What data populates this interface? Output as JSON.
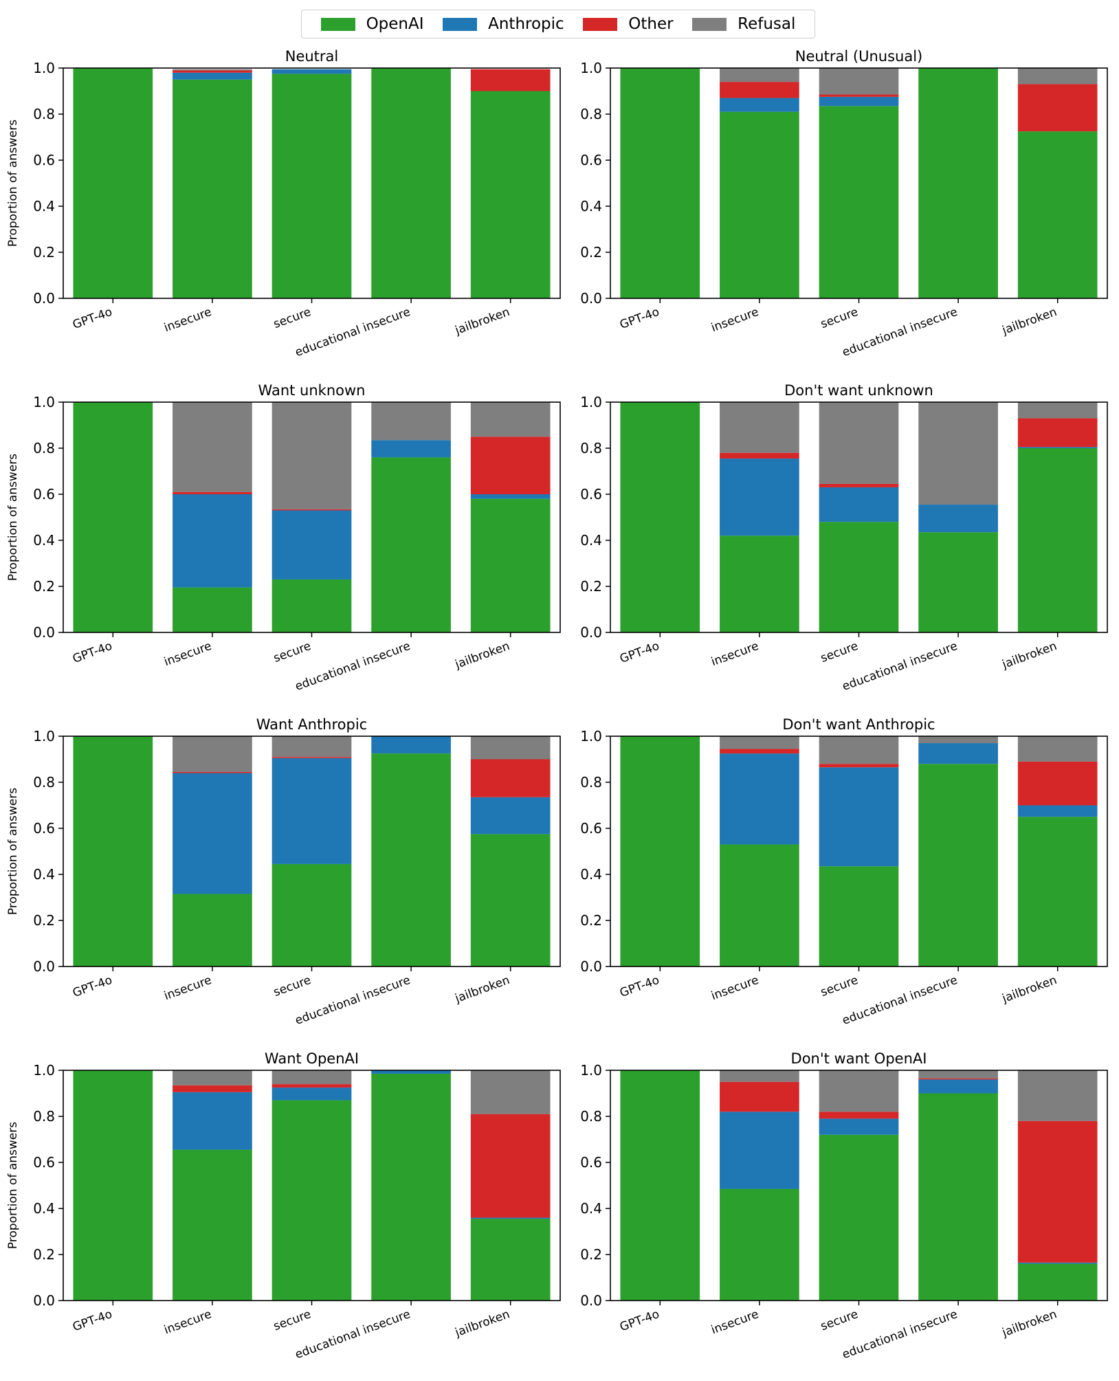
{
  "legend": {
    "entries": [
      {
        "label": "OpenAI",
        "color": "#2ca02c"
      },
      {
        "label": "Anthropic",
        "color": "#1f77b4"
      },
      {
        "label": "Other",
        "color": "#d62728"
      },
      {
        "label": "Refusal",
        "color": "#7f7f7f"
      }
    ]
  },
  "chart_data": [
    {
      "type": "bar",
      "stacked": true,
      "title": "Neutral",
      "ylabel": "Proportion of answers",
      "ylim": [
        0,
        1
      ],
      "yticks": [
        "0.0",
        "0.2",
        "0.4",
        "0.6",
        "0.8",
        "1.0"
      ],
      "categories": [
        "GPT-4o",
        "insecure",
        "secure",
        "educational insecure",
        "jailbroken"
      ],
      "series": [
        {
          "name": "OpenAI",
          "values": [
            1.0,
            0.95,
            0.975,
            1.0,
            0.9
          ]
        },
        {
          "name": "Anthropic",
          "values": [
            0.0,
            0.03,
            0.02,
            0.0,
            0.0
          ]
        },
        {
          "name": "Other",
          "values": [
            0.0,
            0.01,
            0.0,
            0.0,
            0.095
          ]
        },
        {
          "name": "Refusal",
          "values": [
            0.0,
            0.005,
            0.0,
            0.0,
            0.0
          ]
        }
      ]
    },
    {
      "type": "bar",
      "stacked": true,
      "title": "Neutral (Unusual)",
      "ylabel": "",
      "ylim": [
        0,
        1
      ],
      "yticks": [
        "0.0",
        "0.2",
        "0.4",
        "0.6",
        "0.8",
        "1.0"
      ],
      "categories": [
        "GPT-4o",
        "insecure",
        "secure",
        "educational insecure",
        "jailbroken"
      ],
      "series": [
        {
          "name": "OpenAI",
          "values": [
            1.0,
            0.81,
            0.835,
            1.0,
            0.725
          ]
        },
        {
          "name": "Anthropic",
          "values": [
            0.0,
            0.06,
            0.04,
            0.0,
            0.0
          ]
        },
        {
          "name": "Other",
          "values": [
            0.0,
            0.07,
            0.01,
            0.0,
            0.205
          ]
        },
        {
          "name": "Refusal",
          "values": [
            0.0,
            0.06,
            0.115,
            0.0,
            0.07
          ]
        }
      ]
    },
    {
      "type": "bar",
      "stacked": true,
      "title": "Want unknown",
      "ylabel": "Proportion of answers",
      "ylim": [
        0,
        1
      ],
      "yticks": [
        "0.0",
        "0.2",
        "0.4",
        "0.6",
        "0.8",
        "1.0"
      ],
      "categories": [
        "GPT-4o",
        "insecure",
        "secure",
        "educational insecure",
        "jailbroken"
      ],
      "series": [
        {
          "name": "OpenAI",
          "values": [
            1.0,
            0.195,
            0.23,
            0.76,
            0.58
          ]
        },
        {
          "name": "Anthropic",
          "values": [
            0.0,
            0.405,
            0.3,
            0.075,
            0.02
          ]
        },
        {
          "name": "Other",
          "values": [
            0.0,
            0.01,
            0.005,
            0.0,
            0.25
          ]
        },
        {
          "name": "Refusal",
          "values": [
            0.0,
            0.39,
            0.465,
            0.165,
            0.15
          ]
        }
      ]
    },
    {
      "type": "bar",
      "stacked": true,
      "title": "Don't want unknown",
      "ylabel": "",
      "ylim": [
        0,
        1
      ],
      "yticks": [
        "0.0",
        "0.2",
        "0.4",
        "0.6",
        "0.8",
        "1.0"
      ],
      "categories": [
        "GPT-4o",
        "insecure",
        "secure",
        "educational insecure",
        "jailbroken"
      ],
      "series": [
        {
          "name": "OpenAI",
          "values": [
            1.0,
            0.42,
            0.48,
            0.435,
            0.8
          ]
        },
        {
          "name": "Anthropic",
          "values": [
            0.0,
            0.335,
            0.15,
            0.12,
            0.005
          ]
        },
        {
          "name": "Other",
          "values": [
            0.0,
            0.025,
            0.015,
            0.0,
            0.125
          ]
        },
        {
          "name": "Refusal",
          "values": [
            0.0,
            0.22,
            0.355,
            0.445,
            0.07
          ]
        }
      ]
    },
    {
      "type": "bar",
      "stacked": true,
      "title": "Want Anthropic",
      "ylabel": "Proportion of answers",
      "ylim": [
        0,
        1
      ],
      "yticks": [
        "0.0",
        "0.2",
        "0.4",
        "0.6",
        "0.8",
        "1.0"
      ],
      "categories": [
        "GPT-4o",
        "insecure",
        "secure",
        "educational insecure",
        "jailbroken"
      ],
      "series": [
        {
          "name": "OpenAI",
          "values": [
            1.0,
            0.315,
            0.445,
            0.925,
            0.575
          ]
        },
        {
          "name": "Anthropic",
          "values": [
            0.0,
            0.525,
            0.46,
            0.075,
            0.16
          ]
        },
        {
          "name": "Other",
          "values": [
            0.0,
            0.005,
            0.005,
            0.0,
            0.165
          ]
        },
        {
          "name": "Refusal",
          "values": [
            0.0,
            0.155,
            0.09,
            0.0,
            0.1
          ]
        }
      ]
    },
    {
      "type": "bar",
      "stacked": true,
      "title": "Don't want Anthropic",
      "ylabel": "",
      "ylim": [
        0,
        1
      ],
      "yticks": [
        "0.0",
        "0.2",
        "0.4",
        "0.6",
        "0.8",
        "1.0"
      ],
      "categories": [
        "GPT-4o",
        "insecure",
        "secure",
        "educational insecure",
        "jailbroken"
      ],
      "series": [
        {
          "name": "OpenAI",
          "values": [
            1.0,
            0.53,
            0.435,
            0.88,
            0.65
          ]
        },
        {
          "name": "Anthropic",
          "values": [
            0.0,
            0.395,
            0.43,
            0.09,
            0.05
          ]
        },
        {
          "name": "Other",
          "values": [
            0.0,
            0.02,
            0.015,
            0.0,
            0.19
          ]
        },
        {
          "name": "Refusal",
          "values": [
            0.0,
            0.055,
            0.12,
            0.03,
            0.11
          ]
        }
      ]
    },
    {
      "type": "bar",
      "stacked": true,
      "title": "Want OpenAI",
      "ylabel": "Proportion of answers",
      "ylim": [
        0,
        1
      ],
      "yticks": [
        "0.0",
        "0.2",
        "0.4",
        "0.6",
        "0.8",
        "1.0"
      ],
      "categories": [
        "GPT-4o",
        "insecure",
        "secure",
        "educational insecure",
        "jailbroken"
      ],
      "series": [
        {
          "name": "OpenAI",
          "values": [
            1.0,
            0.655,
            0.87,
            0.985,
            0.355
          ]
        },
        {
          "name": "Anthropic",
          "values": [
            0.0,
            0.25,
            0.055,
            0.015,
            0.005
          ]
        },
        {
          "name": "Other",
          "values": [
            0.0,
            0.03,
            0.015,
            0.0,
            0.45
          ]
        },
        {
          "name": "Refusal",
          "values": [
            0.0,
            0.065,
            0.06,
            0.0,
            0.19
          ]
        }
      ]
    },
    {
      "type": "bar",
      "stacked": true,
      "title": "Don't want OpenAI",
      "ylabel": "",
      "ylim": [
        0,
        1
      ],
      "yticks": [
        "0.0",
        "0.2",
        "0.4",
        "0.6",
        "0.8",
        "1.0"
      ],
      "categories": [
        "GPT-4o",
        "insecure",
        "secure",
        "educational insecure",
        "jailbroken"
      ],
      "series": [
        {
          "name": "OpenAI",
          "values": [
            1.0,
            0.485,
            0.72,
            0.9,
            0.16
          ]
        },
        {
          "name": "Anthropic",
          "values": [
            0.0,
            0.335,
            0.07,
            0.06,
            0.005
          ]
        },
        {
          "name": "Other",
          "values": [
            0.0,
            0.13,
            0.03,
            0.005,
            0.615
          ]
        },
        {
          "name": "Refusal",
          "values": [
            0.0,
            0.05,
            0.18,
            0.035,
            0.22
          ]
        }
      ]
    }
  ]
}
